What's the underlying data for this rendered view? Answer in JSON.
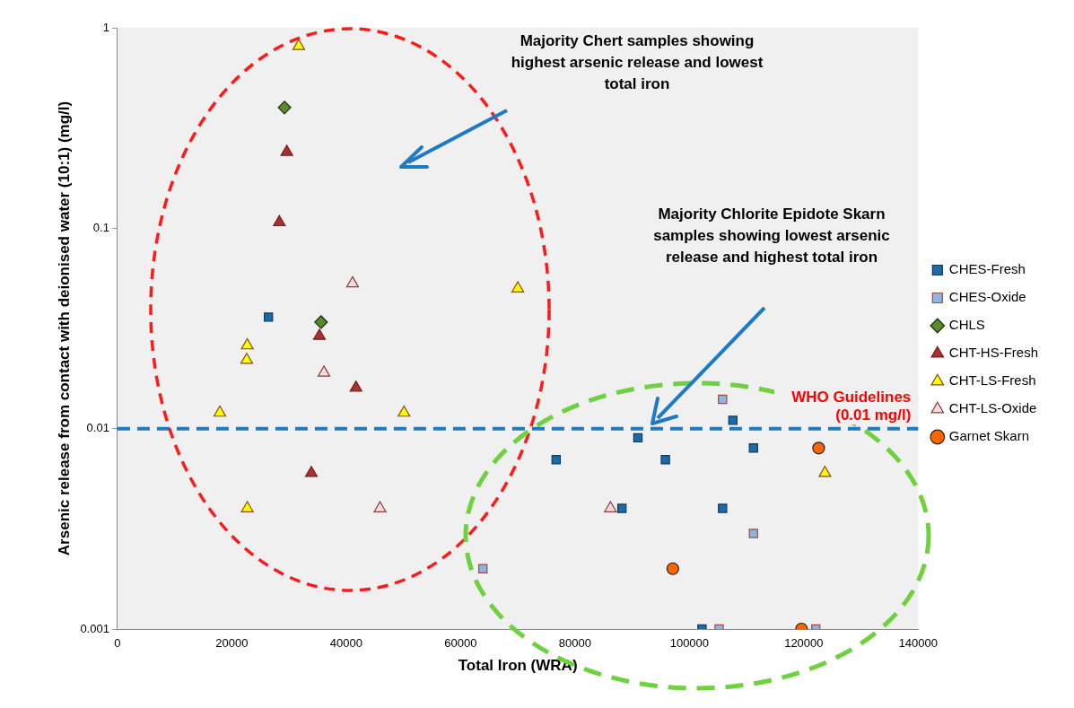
{
  "chart_data": {
    "type": "scatter",
    "xlabel": "Total Iron (WRA)",
    "ylabel": "Arsenic release from contact with deionised water (10:1) (mg/l)",
    "log": "y",
    "grid": false,
    "legend": "right",
    "xlim": [
      0,
      140000
    ],
    "xticks": [
      0,
      20000,
      40000,
      60000,
      80000,
      100000,
      120000,
      140000
    ],
    "ylim": [
      0.001,
      1
    ],
    "yticks": [
      0.001,
      0.01,
      0.1,
      1
    ],
    "ref_lines": [
      {
        "axis": "y",
        "value": 0.01,
        "label": "WHO Guidelines (0.01 mg/l)",
        "color": "#1f7ac4",
        "line_style": "dashed"
      }
    ],
    "annotations": [
      "Majority Chert samples showing highest arsenic release and lowest total iron",
      "Majority Chlorite Epidote Skarn samples showing lowest arsenic release and highest total iron"
    ],
    "series": [
      {
        "name": "CHES-Fresh",
        "color": "#1f6aa5",
        "marker": "square",
        "x": [
          26400,
          76700,
          91000,
          95800,
          88200,
          105800,
          107600,
          111200,
          102200
        ],
        "values": [
          0.036,
          0.007,
          0.009,
          0.007,
          0.004,
          0.004,
          0.011,
          0.008,
          0.001
        ]
      },
      {
        "name": "CHES-Oxide",
        "color": "#8fb4e3",
        "marker": "square",
        "x": [
          63900,
          105800,
          111200,
          105200,
          122100
        ],
        "values": [
          0.002,
          0.014,
          0.003,
          0.001,
          0.001
        ]
      },
      {
        "name": "CHLS",
        "color": "#5b8a2e",
        "marker": "diamond",
        "x": [
          29200,
          35600
        ],
        "values": [
          0.4,
          0.034
        ]
      },
      {
        "name": "CHT-HS-Fresh",
        "color": "#a83232",
        "marker": "triangle",
        "x": [
          29600,
          28300,
          35300,
          41700,
          33900
        ],
        "values": [
          0.24,
          0.107,
          0.029,
          0.016,
          0.006
        ]
      },
      {
        "name": "CHT-LS-Fresh",
        "color": "#ffff00",
        "marker": "triangle",
        "x": [
          31700,
          22700,
          22600,
          17900,
          50100,
          70000,
          22700,
          123700
        ],
        "values": [
          0.81,
          0.026,
          0.022,
          0.012,
          0.012,
          0.05,
          0.004,
          0.006
        ]
      },
      {
        "name": "CHT-LS-Oxide",
        "color": "#f2dcdb",
        "marker": "triangle",
        "x": [
          41100,
          36100,
          45900,
          86200
        ],
        "values": [
          0.053,
          0.019,
          0.004,
          0.004
        ]
      },
      {
        "name": "Garnet Skarn",
        "color": "#ff6600",
        "marker": "circle",
        "x": [
          122600,
          97100,
          119600
        ],
        "values": [
          0.008,
          0.002,
          0.001
        ]
      }
    ]
  }
}
